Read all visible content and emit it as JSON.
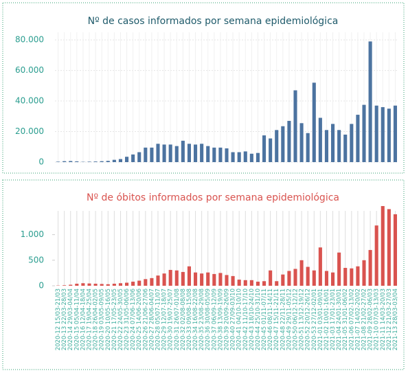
{
  "chart_data": [
    {
      "type": "bar",
      "title": "Nº de casos informados por semana epidemiológica",
      "color": "#4c73a0",
      "grid": true,
      "values": [
        300,
        600,
        700,
        500,
        200,
        300,
        400,
        600,
        800,
        1500,
        2000,
        3500,
        5000,
        6500,
        9500,
        9500,
        12000,
        11500,
        11500,
        10500,
        14000,
        12000,
        11500,
        12000,
        10500,
        9500,
        9500,
        9000,
        6500,
        6500,
        7000,
        5500,
        6000,
        17500,
        15500,
        21000,
        23500,
        27000,
        47000,
        25500,
        19000,
        52000,
        29000,
        21000,
        25000,
        21000,
        18000,
        25000,
        31000,
        37500,
        79000,
        37000,
        36000,
        35000,
        37000
      ],
      "ylim": [
        0,
        85000
      ],
      "yticks": [
        0,
        {
          "value": 20000,
          "label": "20.000"
        },
        {
          "value": 40000,
          "label": "40.000"
        },
        {
          "value": 60000,
          "label": "60.000"
        },
        {
          "value": 80000,
          "label": "80.000"
        }
      ]
    },
    {
      "type": "bar",
      "title": "Nº de óbitos informados por semana epidemiológica",
      "color": "#d9534f",
      "grid": true,
      "categories": [
        "2020-12 15/03-21/03",
        "2020-13 22/03-28/03",
        "2020-14 29/03-04/04",
        "2020-15 05/04-11/04",
        "2020-16 12/04-18/04",
        "2020-17 19/04-25/04",
        "2020-18 26/04-02/05",
        "2020-19 03/05-09/05",
        "2020-20 10/05-16/05",
        "2020-21 17/05-23/05",
        "2020-22 24/05-30/05",
        "2020-23 31/05-06/06",
        "2020-24 07/06-13/06",
        "2020-25 14/06-20/06",
        "2020-26 21/06-27/06",
        "2020-27 28/06-04/07",
        "2020-28 05/07-11/07",
        "2020-29 12/07-18/07",
        "2020-30 19/07-25/07",
        "2020-31 26/07-01/08",
        "2020-32 02/08-08/08",
        "2020-33 09/08-15/08",
        "2020-34 16/08-22/08",
        "2020-35 23/08-29/08",
        "2020-36 30/08-05/09",
        "2020-37 06/09-12/09",
        "2020-38 13/09-19/09",
        "2020-39 20/09-26/09",
        "2020-40 27/09-03/10",
        "2020-41 04/10-10/10",
        "2020-42 11/10-17/10",
        "2020-43 18/10-24/10",
        "2020-44 25/10-31/10",
        "2020-45 01/11-07/11",
        "2020-46 08/11-14/11",
        "2020-47 15/11-21/11",
        "2020-48 22/11-28/11",
        "2020-49 29/11-05/12",
        "2020-50 06/12-12/12",
        "2020-51 13/12-19/12",
        "2020-52 20/12-26/12",
        "2020-53 27/12-02/01",
        "2021-01 03/01-09/01",
        "2021-02 10/01-16/01",
        "2021-03 17/01-23/01",
        "2021-04 24/01-30/01",
        "2021-05 31/01-06/02",
        "2021-06 07/02-13/02",
        "2021-07 14/02-20/02",
        "2021-08 21/02-27/02",
        "2021-09 28/02-06/03",
        "2021-10 07/03-13/03",
        "2021-11 14/03-20/03",
        "2021-12 21/03-27/03",
        "2021-13 28/03-03/04"
      ],
      "values": [
        5,
        10,
        20,
        40,
        50,
        45,
        40,
        35,
        30,
        40,
        50,
        60,
        80,
        100,
        130,
        150,
        200,
        240,
        310,
        300,
        270,
        380,
        260,
        240,
        260,
        230,
        250,
        210,
        190,
        120,
        110,
        110,
        80,
        90,
        300,
        90,
        220,
        290,
        330,
        500,
        370,
        300,
        750,
        290,
        260,
        650,
        350,
        340,
        380,
        500,
        700,
        1180,
        1560,
        1500,
        1400
      ],
      "ylim": [
        0,
        1600
      ],
      "yticks": [
        0,
        500,
        {
          "value": 1000,
          "label": "1.000"
        }
      ]
    }
  ]
}
